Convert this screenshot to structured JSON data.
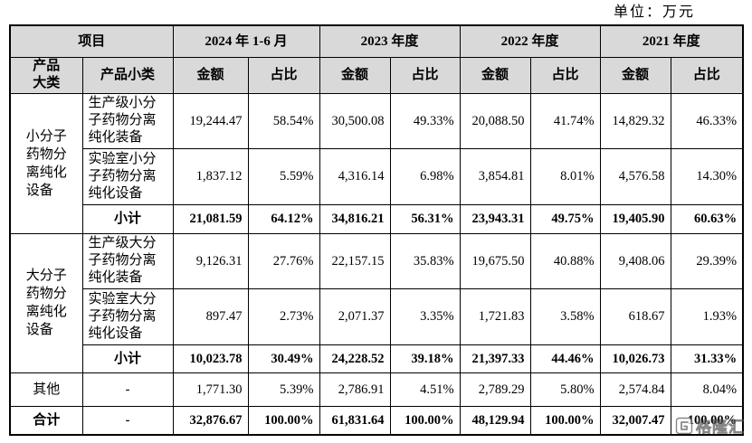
{
  "unit_label": "单位：万元",
  "table": {
    "header": {
      "item_label": "项目",
      "periods": [
        "2024 年 1-6 月",
        "2023 年度",
        "2022 年度",
        "2021 年度"
      ],
      "category_label": "产品大类",
      "subcategory_label": "产品小类",
      "amount_label": "金额",
      "share_label": "占比"
    },
    "groups": [
      {
        "category": "小分子药物分离纯化设备",
        "rows": [
          {
            "subcategory": "生产级小分子药物分离纯化装备",
            "values": [
              "19,244.47",
              "58.54%",
              "30,500.08",
              "49.33%",
              "20,088.50",
              "41.74%",
              "14,829.32",
              "46.33%"
            ]
          },
          {
            "subcategory": "实验室小分子药物分离纯化设备",
            "values": [
              "1,837.12",
              "5.59%",
              "4,316.14",
              "6.98%",
              "3,854.81",
              "8.01%",
              "4,576.58",
              "14.30%"
            ]
          }
        ],
        "subtotal": {
          "label": "小计",
          "values": [
            "21,081.59",
            "64.12%",
            "34,816.21",
            "56.31%",
            "23,943.31",
            "49.75%",
            "19,405.90",
            "60.63%"
          ]
        }
      },
      {
        "category": "大分子药物分离纯化设备",
        "rows": [
          {
            "subcategory": "生产级大分子药物分离纯化装备",
            "values": [
              "9,126.31",
              "27.76%",
              "22,157.15",
              "35.83%",
              "19,675.50",
              "40.88%",
              "9,408.06",
              "29.39%"
            ]
          },
          {
            "subcategory": "实验室大分子药物分离纯化设备",
            "values": [
              "897.47",
              "2.73%",
              "2,071.37",
              "3.35%",
              "1,721.83",
              "3.58%",
              "618.67",
              "1.93%"
            ]
          }
        ],
        "subtotal": {
          "label": "小计",
          "values": [
            "10,023.78",
            "30.49%",
            "24,228.52",
            "39.18%",
            "21,397.33",
            "44.46%",
            "10,026.73",
            "31.33%"
          ]
        }
      }
    ],
    "other": {
      "label": "其他",
      "subcategory": "-",
      "values": [
        "1,771.30",
        "5.39%",
        "2,786.91",
        "4.51%",
        "2,789.29",
        "5.80%",
        "2,574.84",
        "8.04%"
      ]
    },
    "total": {
      "label": "合计",
      "subcategory": "-",
      "values": [
        "32,876.67",
        "100.00%",
        "61,831.64",
        "100.00%",
        "48,129.94",
        "100.00%",
        "32,007.47",
        "100.00%"
      ]
    }
  },
  "colors": {
    "header_background": "#d9d9d9",
    "border": "#000000"
  },
  "watermark": {
    "text": "格隆汇",
    "icon": "gelonghui-logo-icon"
  }
}
